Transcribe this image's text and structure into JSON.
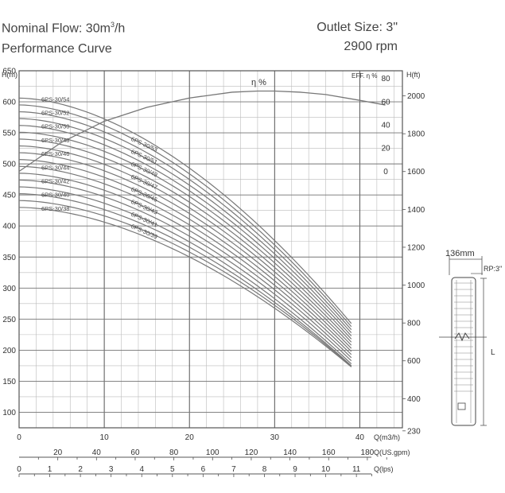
{
  "header": {
    "flow_prefix": "Nominal Flow: 30m",
    "flow_sup": "3",
    "flow_suffix": "/h",
    "performance": "Performance Curve",
    "outlet": "Outlet Size: 3\"",
    "rpm": "2900 rpm"
  },
  "pump_drawing": {
    "width_label": "136mm",
    "outlet_label": "RP:3\"",
    "length_label": "L"
  },
  "chart_data": {
    "type": "line",
    "title": "",
    "xlabel": "Q(m3/h)",
    "ylabel": "H(m)",
    "y2label": "H(ft)",
    "eff_label": "EFF. η %",
    "eta_label": "η %",
    "xlim": [
      0,
      45
    ],
    "ylim": [
      75,
      650
    ],
    "grid": true,
    "x_ticks": [
      "0",
      "10",
      "20",
      "30",
      "40"
    ],
    "x_tick_values": [
      0,
      10,
      20,
      30,
      40
    ],
    "y_ticks": [
      100,
      150,
      200,
      250,
      300,
      350,
      400,
      450,
      500,
      550,
      600,
      650
    ],
    "y_tick_labels": [
      "100",
      "150",
      "200",
      "250",
      "300",
      "350",
      "400",
      "450",
      "500",
      "550",
      "600",
      "650"
    ],
    "ft_ticks": [
      {
        "label": "230",
        "m": 70.1
      },
      {
        "label": "400",
        "m": 121.9
      },
      {
        "label": "600",
        "m": 182.9
      },
      {
        "label": "800",
        "m": 243.8
      },
      {
        "label": "1000",
        "m": 304.8
      },
      {
        "label": "1200",
        "m": 365.8
      },
      {
        "label": "1400",
        "m": 426.7
      },
      {
        "label": "1600",
        "m": 487.7
      },
      {
        "label": "1800",
        "m": 548.6
      },
      {
        "label": "2000",
        "m": 609.6
      }
    ],
    "eff_ticks": [
      {
        "label": "80",
        "m": 638
      },
      {
        "label": "60",
        "m": 600
      },
      {
        "label": "40",
        "m": 563
      },
      {
        "label": "20",
        "m": 526
      },
      {
        "label": "0",
        "m": 488
      }
    ],
    "gpm_axis": {
      "label": "Q(US.gpm)",
      "labels": [
        "20",
        "40",
        "60",
        "80",
        "100",
        "120",
        "140",
        "160",
        "180"
      ],
      "values": [
        20,
        40,
        60,
        80,
        100,
        120,
        140,
        160,
        180
      ],
      "minor_step": 10,
      "max": 190
    },
    "lps_axis": {
      "label": "Q(lps)",
      "labels": [
        "0",
        "1",
        "2",
        "3",
        "4",
        "5",
        "6",
        "7",
        "8",
        "9",
        "10",
        "11"
      ],
      "values": [
        0,
        1,
        2,
        3,
        4,
        5,
        6,
        7,
        8,
        9,
        10,
        11
      ],
      "minor_step": 0.5,
      "max": 11.5
    },
    "series": [
      {
        "name": "6PS-30/54",
        "shutoff": 606,
        "end": 243
      },
      {
        "name": "6PS-30/53",
        "shutoff": 595,
        "end": 238
      },
      {
        "name": "6PS-30/52",
        "shutoff": 584,
        "end": 233
      },
      {
        "name": "6PS-30/51",
        "shutoff": 573,
        "end": 228
      },
      {
        "name": "6PS-30/50",
        "shutoff": 562,
        "end": 223
      },
      {
        "name": "6PS-30/49",
        "shutoff": 551,
        "end": 218
      },
      {
        "name": "6PS-30/48",
        "shutoff": 540,
        "end": 213
      },
      {
        "name": "6PS-30/47",
        "shutoff": 529,
        "end": 208
      },
      {
        "name": "6PS-30/46",
        "shutoff": 518,
        "end": 203
      },
      {
        "name": "6PS-30/45",
        "shutoff": 507,
        "end": 198
      },
      {
        "name": "6PS-30/44",
        "shutoff": 496,
        "end": 193
      },
      {
        "name": "6PS-30/43",
        "shutoff": 485,
        "end": 188
      },
      {
        "name": "6PS-30/42",
        "shutoff": 474,
        "end": 183
      },
      {
        "name": "6PS-30/41",
        "shutoff": 463,
        "end": 178
      },
      {
        "name": "6PS-30/40",
        "shutoff": 452,
        "end": 175
      },
      {
        "name": "6PS-30/39",
        "shutoff": 441,
        "end": 174
      },
      {
        "name": "6PS-30/38",
        "shutoff": 430,
        "end": 173
      }
    ],
    "flow_end": 39,
    "efficiency": {
      "x": [
        0,
        5,
        10,
        15,
        20,
        25,
        28,
        30,
        33,
        36,
        40,
        43
      ],
      "eff": [
        0,
        25,
        43,
        55,
        63,
        68,
        69,
        69,
        68,
        66,
        61,
        57
      ]
    }
  }
}
